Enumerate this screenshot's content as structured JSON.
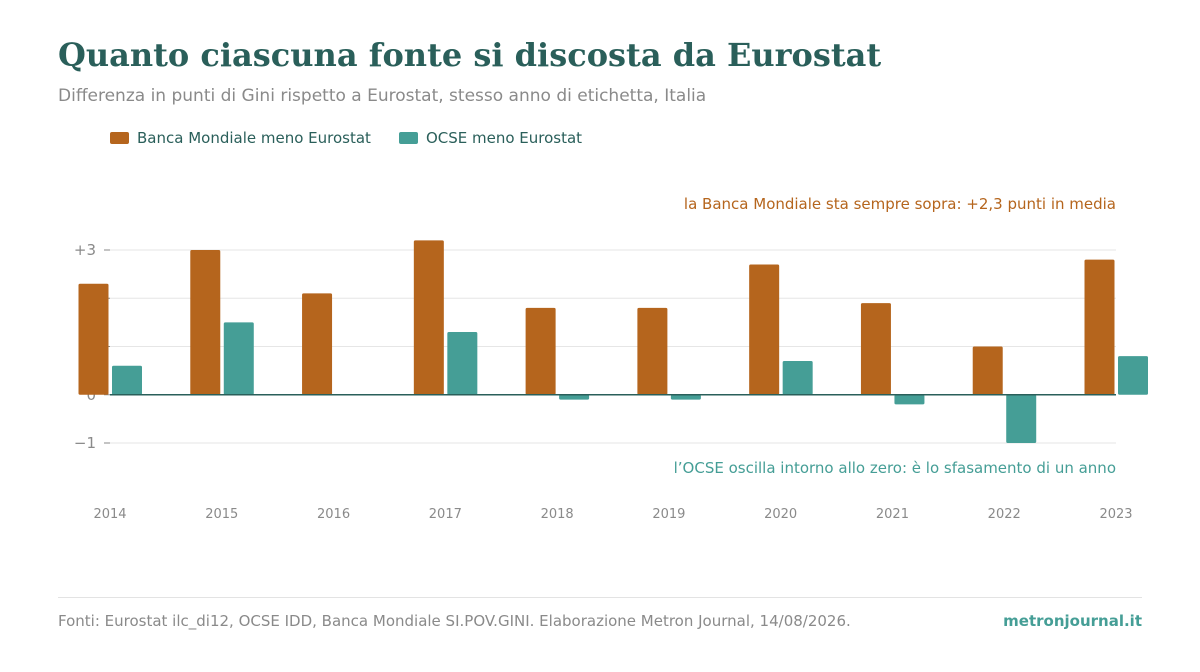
{
  "header": {
    "title": "Quanto ciascuna fonte si discosta da Eurostat",
    "subtitle": "Differenza in punti di Gini rispetto a Eurostat, stesso anno di etichetta, Italia"
  },
  "legend": {
    "series_a": "Banca Mondiale meno Eurostat",
    "series_b": "OCSE meno Eurostat"
  },
  "annotations": {
    "world_bank": "la Banca Mondiale sta sempre sopra: +2,3 punti in media",
    "oecd": "l’OCSE oscilla intorno allo zero: è lo sfasamento di un anno"
  },
  "footer": {
    "source": "Fonti: Eurostat ilc_di12, OCSE IDD, Banca Mondiale SI.POV.GINI. Elaborazione Metron Journal, 14/08/2026.",
    "brand": "metronjournal.it"
  },
  "colors": {
    "title": "#2a5f5a",
    "world_bank": "#b5651d",
    "oecd": "#459e96",
    "grid": "#e6e6e6",
    "zero_line": "#2a5f5a"
  },
  "chart_data": {
    "type": "bar",
    "categories": [
      "2014",
      "2015",
      "2016",
      "2017",
      "2018",
      "2019",
      "2020",
      "2021",
      "2022",
      "2023"
    ],
    "series": [
      {
        "name": "Banca Mondiale meno Eurostat",
        "values": [
          2.3,
          3.0,
          2.1,
          3.2,
          1.8,
          1.8,
          2.7,
          1.9,
          1.0,
          2.8
        ]
      },
      {
        "name": "OCSE meno Eurostat",
        "values": [
          0.6,
          1.5,
          null,
          1.3,
          -0.1,
          -0.1,
          0.7,
          -0.2,
          -1.0,
          0.8
        ]
      }
    ],
    "yticks": [
      {
        "value": 3,
        "label": "+3"
      },
      {
        "value": 2,
        "label": ""
      },
      {
        "value": 1,
        "label": ""
      },
      {
        "value": 0,
        "label": "0"
      },
      {
        "value": -1,
        "label": "−1"
      }
    ],
    "ylim": [
      -1,
      3
    ],
    "grid": true,
    "legend_position": "top-left"
  }
}
